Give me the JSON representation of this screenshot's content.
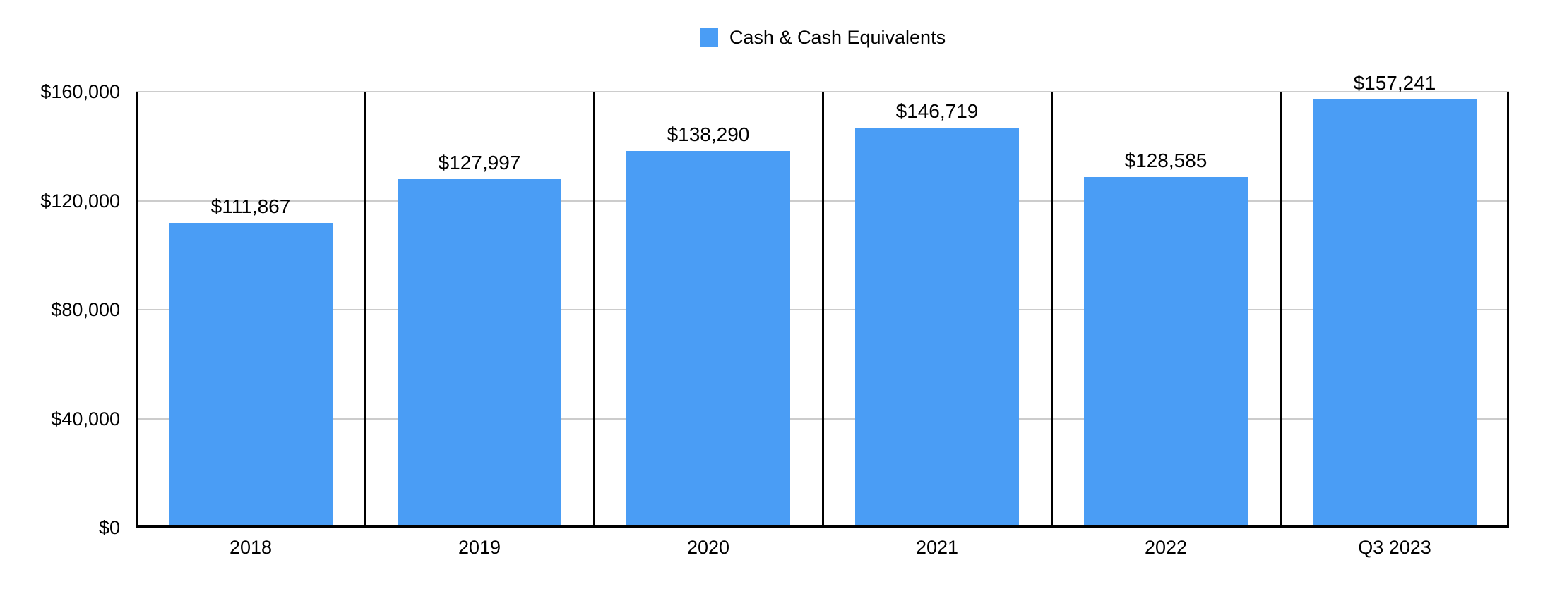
{
  "legend": {
    "items": [
      {
        "label": "Cash & Cash Equivalents",
        "color": "#4A9DF5"
      }
    ]
  },
  "chart_data": {
    "type": "bar",
    "title": "",
    "categories": [
      "2018",
      "2019",
      "2020",
      "2021",
      "2022",
      "Q3 2023"
    ],
    "series": [
      {
        "name": "Cash & Cash Equivalents",
        "values": [
          111867,
          127997,
          138290,
          146719,
          128585,
          157241
        ],
        "labels": [
          "$111,867",
          "$127,997",
          "$138,290",
          "$146,719",
          "$128,585",
          "$157,241"
        ]
      }
    ],
    "ylim": [
      0,
      160000
    ],
    "yticks": [
      {
        "value": 160000,
        "label": "$160,000"
      },
      {
        "value": 120000,
        "label": "$120,000"
      },
      {
        "value": 80000,
        "label": "$80,000"
      },
      {
        "value": 40000,
        "label": "$40,000"
      },
      {
        "value": 0,
        "label": "$0"
      }
    ],
    "grid": "horizontal-major",
    "legend_position": "top-center",
    "colors": {
      "bar": "#4A9DF5",
      "grid": "#CCCCCC",
      "axis": "#000000",
      "text": "#000000",
      "background": "#FFFFFF"
    }
  }
}
